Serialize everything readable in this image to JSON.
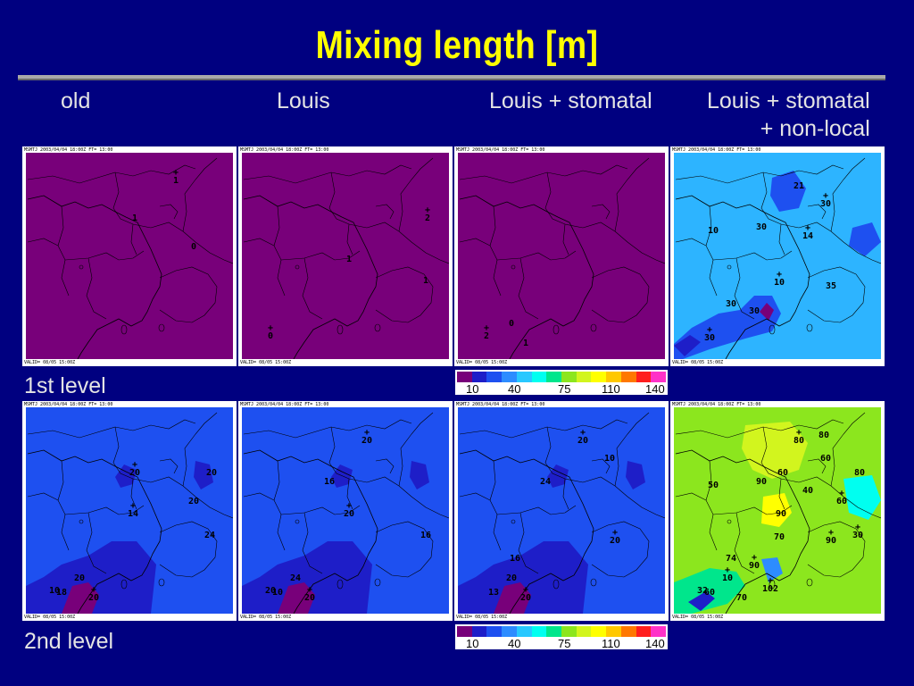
{
  "slide": {
    "title": "Mixing length [m]",
    "columns": [
      {
        "lines": [
          "old"
        ]
      },
      {
        "lines": [
          "Louis"
        ]
      },
      {
        "lines": [
          "Louis + stomatal"
        ]
      },
      {
        "lines": [
          "Louis + stomatal",
          "+ non-local"
        ]
      }
    ],
    "row_labels": [
      "1st level",
      "2nd level"
    ]
  },
  "panels": {
    "header_text": "MSMTJ 2003/04/04 18:00Z FT= 13:00",
    "footer_text": "VALID= 08/05 15:00Z",
    "row1": [
      {
        "bg": "#78007a",
        "labels": [
          "1",
          "1",
          "0"
        ]
      },
      {
        "bg": "#78007a",
        "labels": [
          "2",
          "1",
          "1",
          "0"
        ]
      },
      {
        "bg": "#78007a",
        "labels": [
          "2",
          "1",
          "0"
        ]
      },
      {
        "bg": "#2db4ff",
        "labels": [
          "30",
          "21",
          "30",
          "30",
          "35",
          "30",
          "10",
          "30",
          "10",
          "14"
        ]
      }
    ],
    "row2": [
      {
        "bg": "#1e50f0",
        "labels": [
          "20",
          "20",
          "20",
          "14",
          "24",
          "10",
          "20",
          "20",
          "18"
        ]
      },
      {
        "bg": "#1e50f0",
        "labels": [
          "20",
          "16",
          "20",
          "20",
          "24",
          "10",
          "20",
          "16"
        ]
      },
      {
        "bg": "#1e50f0",
        "labels": [
          "20",
          "20",
          "13",
          "20",
          "24",
          "10",
          "20",
          "16"
        ]
      },
      {
        "bg": "#8ce61e",
        "labels": [
          "80",
          "90",
          "60",
          "90",
          "74",
          "70",
          "90",
          "50",
          "40",
          "102",
          "80",
          "60",
          "60",
          "80",
          "90",
          "30",
          "32",
          "70",
          "10",
          "60"
        ]
      }
    ]
  },
  "colorbar": {
    "colors": [
      "#78007a",
      "#1e1ec8",
      "#1e50f0",
      "#2d8cff",
      "#28c8ff",
      "#00fff0",
      "#00e68c",
      "#8ce61e",
      "#d2f51e",
      "#ffff00",
      "#ffc800",
      "#ff7800",
      "#ff1e1e",
      "#ff32c8"
    ],
    "ticks": [
      "10",
      "40",
      "75",
      "110",
      "140"
    ]
  }
}
